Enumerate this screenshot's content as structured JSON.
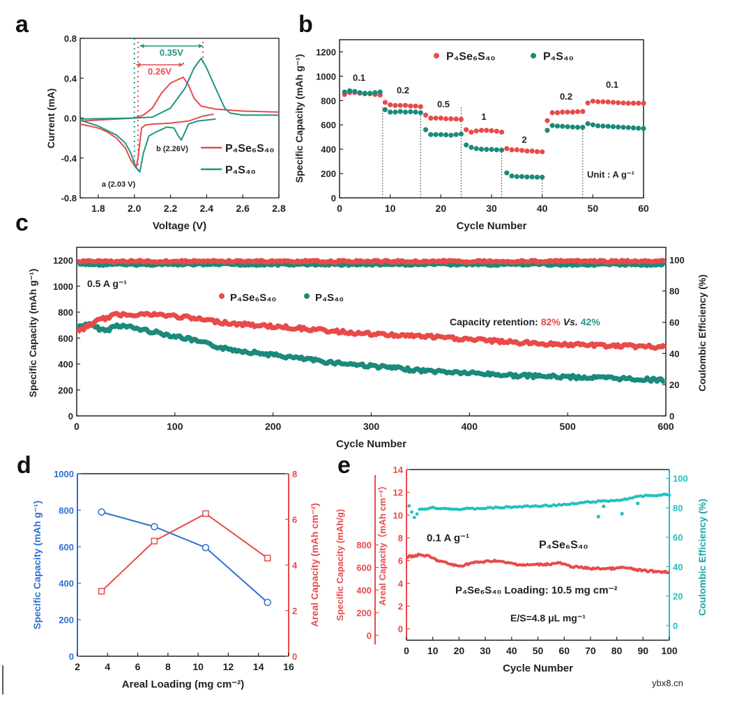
{
  "figure": {
    "panel_labels": [
      "a",
      "b",
      "c",
      "d",
      "e"
    ],
    "watermark": "ybx8.cn"
  },
  "chart_data": [
    {
      "panel": "a",
      "type": "line",
      "xlabel": "Voltage (V)",
      "ylabel": "Current (mA)",
      "xlim": [
        1.7,
        2.8
      ],
      "ylim": [
        -0.8,
        0.8
      ],
      "xticks": [
        1.8,
        2.0,
        2.2,
        2.4,
        2.6,
        2.8
      ],
      "xtick_labels": [
        "1.8",
        "2.0",
        "2.2",
        "2.4",
        "2.6",
        "2.8"
      ],
      "yticks": [
        -0.8,
        -0.4,
        0,
        0.4,
        0.8
      ],
      "ytick_labels": [
        "-0.8",
        "-0.4",
        "0.0",
        "0.4",
        "0.8"
      ],
      "legend_position": "bottom-right",
      "series": [
        {
          "name": "P₄Se₆S₄₀",
          "color": "#e84a4a",
          "segments": [
            [
              [
                2.44,
                0.04
              ],
              [
                2.38,
                0.02
              ],
              [
                2.3,
                -0.03
              ],
              [
                2.25,
                -0.04
              ],
              [
                2.2,
                -0.05
              ],
              [
                2.1,
                -0.06
              ],
              [
                2.06,
                -0.07
              ],
              [
                2.04,
                -0.1
              ],
              [
                2.02,
                -0.4
              ],
              [
                2.01,
                -0.5
              ],
              [
                1.98,
                -0.42
              ],
              [
                1.95,
                -0.3
              ],
              [
                1.9,
                -0.2
              ],
              [
                1.85,
                -0.14
              ],
              [
                1.8,
                -0.1
              ],
              [
                1.7,
                -0.06
              ]
            ],
            [
              [
                1.7,
                -0.03
              ],
              [
                1.9,
                -0.01
              ],
              [
                2.0,
                0.0
              ],
              [
                2.05,
                0.03
              ],
              [
                2.1,
                0.1
              ],
              [
                2.15,
                0.25
              ],
              [
                2.2,
                0.35
              ],
              [
                2.27,
                0.41
              ],
              [
                2.3,
                0.33
              ],
              [
                2.33,
                0.2
              ],
              [
                2.37,
                0.12
              ],
              [
                2.45,
                0.09
              ],
              [
                2.6,
                0.07
              ],
              [
                2.8,
                0.06
              ]
            ]
          ]
        },
        {
          "name": "P₄S₄₀",
          "color": "#1e9484",
          "segments": [
            [
              [
                2.45,
                -0.01
              ],
              [
                2.35,
                -0.03
              ],
              [
                2.3,
                -0.06
              ],
              [
                2.27,
                -0.18
              ],
              [
                2.26,
                -0.22
              ],
              [
                2.24,
                -0.17
              ],
              [
                2.22,
                -0.1
              ],
              [
                2.18,
                -0.09
              ],
              [
                2.12,
                -0.14
              ],
              [
                2.08,
                -0.18
              ],
              [
                2.05,
                -0.35
              ],
              [
                2.03,
                -0.54
              ],
              [
                2.01,
                -0.5
              ],
              [
                1.98,
                -0.35
              ],
              [
                1.95,
                -0.25
              ],
              [
                1.9,
                -0.17
              ],
              [
                1.8,
                -0.08
              ],
              [
                1.7,
                -0.02
              ]
            ],
            [
              [
                1.7,
                -0.01
              ],
              [
                2.0,
                0.0
              ],
              [
                2.1,
                0.01
              ],
              [
                2.2,
                0.1
              ],
              [
                2.28,
                0.3
              ],
              [
                2.33,
                0.5
              ],
              [
                2.37,
                0.6
              ],
              [
                2.4,
                0.5
              ],
              [
                2.45,
                0.3
              ],
              [
                2.5,
                0.1
              ],
              [
                2.53,
                0.05
              ],
              [
                2.6,
                0.03
              ],
              [
                2.8,
                0.03
              ]
            ]
          ]
        }
      ],
      "annotations": [
        {
          "text": "0.35V",
          "color": "#1e9484",
          "from_x": 2.03,
          "to_x": 2.38
        },
        {
          "text": "0.26V",
          "color": "#e84a4a",
          "from_x": 2.01,
          "to_x": 2.27
        },
        {
          "text": "a (2.03 V)"
        },
        {
          "text": "b (2.26V)"
        }
      ]
    },
    {
      "panel": "b",
      "type": "scatter",
      "xlabel": "Cycle Number",
      "ylabel": "Specific Capacity (mAh g⁻¹)",
      "xlim": [
        0,
        60
      ],
      "ylim": [
        0,
        1300
      ],
      "xticks": [
        0,
        10,
        20,
        30,
        40,
        50,
        60
      ],
      "xtick_labels": [
        "0",
        "10",
        "20",
        "30",
        "40",
        "50",
        "60"
      ],
      "yticks": [
        0,
        200,
        400,
        600,
        800,
        1000,
        1200
      ],
      "ytick_labels": [
        "0",
        "200",
        "400",
        "600",
        "800",
        "1000",
        "1200"
      ],
      "legend_position": "top",
      "x_start": 1,
      "series": [
        {
          "name": "P₄Se₆S₄₀",
          "color": "#e84a4a",
          "values": [
            850,
            865,
            865,
            860,
            855,
            855,
            850,
            845,
            785,
            765,
            760,
            760,
            760,
            755,
            755,
            750,
            680,
            655,
            655,
            655,
            650,
            650,
            648,
            645,
            560,
            540,
            550,
            555,
            555,
            552,
            548,
            540,
            405,
            395,
            395,
            390,
            385,
            385,
            380,
            378,
            635,
            700,
            700,
            705,
            705,
            705,
            708,
            710,
            780,
            795,
            790,
            790,
            788,
            785,
            782,
            780,
            778,
            778,
            778,
            778
          ]
        },
        {
          "name": "P₄S₄₀",
          "color": "#1a8a7a",
          "values": [
            870,
            880,
            875,
            865,
            860,
            860,
            865,
            870,
            725,
            705,
            705,
            710,
            705,
            708,
            705,
            700,
            560,
            520,
            520,
            520,
            518,
            515,
            520,
            525,
            435,
            415,
            405,
            400,
            398,
            398,
            395,
            393,
            205,
            180,
            175,
            175,
            172,
            172,
            170,
            170,
            555,
            595,
            590,
            588,
            585,
            582,
            580,
            580,
            610,
            600,
            592,
            590,
            588,
            585,
            582,
            580,
            578,
            575,
            572,
            570
          ]
        }
      ],
      "rate_boundaries": [
        8.5,
        16,
        24,
        32,
        40,
        48
      ],
      "rate_labels": [
        "0.1",
        "0.2",
        "0.5",
        "1",
        "2",
        "0.2",
        "0.1"
      ],
      "unit_note": "Unit : A g⁻¹"
    },
    {
      "panel": "c",
      "type": "line",
      "xlabel": "Cycle Number",
      "ylabel": "Specific Capacity (mAh g⁻¹)",
      "ylabel_right": "Coulombic Efficiency (%)",
      "xlim": [
        0,
        600
      ],
      "ylim": [
        0,
        1300
      ],
      "ylim_right": [
        0,
        108
      ],
      "xticks": [
        0,
        100,
        200,
        300,
        400,
        500,
        600
      ],
      "xtick_labels": [
        "0",
        "100",
        "200",
        "300",
        "400",
        "500",
        "600"
      ],
      "yticks": [
        0,
        200,
        400,
        600,
        800,
        1000,
        1200
      ],
      "ytick_labels": [
        "0",
        "200",
        "400",
        "600",
        "800",
        "1000",
        "1200"
      ],
      "yticks_right": [
        0,
        20,
        40,
        60,
        80,
        100
      ],
      "ytick_labels_right": [
        "0",
        "20",
        "40",
        "60",
        "80",
        "100"
      ],
      "legend_position": "top-center",
      "current_density": "0.5 A g⁻¹",
      "series": [
        {
          "name": "P₄Se₆S₄₀",
          "color": "#e84a4a",
          "capacity": [
            [
              0,
              640
            ],
            [
              20,
              730
            ],
            [
              40,
              780
            ],
            [
              60,
              785
            ],
            [
              80,
              780
            ],
            [
              100,
              770
            ],
            [
              120,
              750
            ],
            [
              140,
              730
            ],
            [
              160,
              710
            ],
            [
              180,
              700
            ],
            [
              200,
              690
            ],
            [
              220,
              680
            ],
            [
              250,
              660
            ],
            [
              300,
              630
            ],
            [
              350,
              615
            ],
            [
              400,
              590
            ],
            [
              450,
              565
            ],
            [
              500,
              550
            ],
            [
              550,
              540
            ],
            [
              600,
              530
            ]
          ],
          "coulombic_efficiency": [
            [
              0,
              99
            ],
            [
              600,
              99
            ]
          ]
        },
        {
          "name": "P₄S₄₀",
          "color": "#1a8a7a",
          "capacity": [
            [
              0,
              680
            ],
            [
              10,
              710
            ],
            [
              20,
              680
            ],
            [
              30,
              655
            ],
            [
              40,
              700
            ],
            [
              50,
              690
            ],
            [
              70,
              660
            ],
            [
              90,
              630
            ],
            [
              110,
              600
            ],
            [
              130,
              560
            ],
            [
              150,
              520
            ],
            [
              170,
              500
            ],
            [
              200,
              470
            ],
            [
              220,
              450
            ],
            [
              250,
              420
            ],
            [
              300,
              385
            ],
            [
              350,
              350
            ],
            [
              400,
              330
            ],
            [
              450,
              310
            ],
            [
              500,
              300
            ],
            [
              550,
              290
            ],
            [
              600,
              275
            ]
          ],
          "coulombic_efficiency": [
            [
              0,
              97
            ],
            [
              600,
              97
            ]
          ]
        }
      ],
      "retention": {
        "label": "Capacity retention: ",
        "value_1": "82%",
        "vs": "Vs.",
        "value_2": "42%"
      }
    },
    {
      "panel": "d",
      "type": "line",
      "xlabel": "Areal Loading (mg cm⁻²)",
      "ylabel": "Specific Capacity (mAh g⁻¹)",
      "ylabel_right": "Areal Capacity (mAh cm⁻²)",
      "xlim": [
        2,
        16
      ],
      "ylim": [
        0,
        1000
      ],
      "ylim_right": [
        0,
        8
      ],
      "xticks": [
        2,
        4,
        6,
        8,
        10,
        12,
        14,
        16
      ],
      "xtick_labels": [
        "2",
        "4",
        "6",
        "8",
        "10",
        "12",
        "14",
        "16"
      ],
      "yticks": [
        0,
        200,
        400,
        600,
        800,
        1000
      ],
      "ytick_labels": [
        "0",
        "200",
        "400",
        "600",
        "800",
        "1000"
      ],
      "yticks_right": [
        0,
        2,
        4,
        6,
        8
      ],
      "ytick_labels_right": [
        "0",
        "2",
        "4",
        "6",
        "8"
      ],
      "x": [
        3.6,
        7.1,
        10.5,
        14.6
      ],
      "series": [
        {
          "axis": "left",
          "color": "#2f6fd0",
          "values": [
            790,
            710,
            595,
            295
          ]
        },
        {
          "axis": "right",
          "color": "#e84a4a",
          "values": [
            2.85,
            5.05,
            6.25,
            4.3
          ]
        }
      ]
    },
    {
      "panel": "e",
      "type": "line",
      "xlabel": "Cycle Number",
      "ylabel_outer": "Specific Capacity (mAh/g)",
      "ylabel": "Areal Capacity（mAh cm⁻²）",
      "ylabel_right": "Coulombic Efficiency (%)",
      "xlim": [
        0,
        100
      ],
      "ylim": [
        -1,
        14
      ],
      "ylim_right": [
        -10,
        106
      ],
      "ylim_outer": [
        0,
        800
      ],
      "xticks": [
        0,
        10,
        20,
        30,
        40,
        50,
        60,
        70,
        80,
        90,
        100
      ],
      "xtick_labels": [
        "0",
        "10",
        "20",
        "30",
        "40",
        "50",
        "60",
        "70",
        "80",
        "90",
        "100"
      ],
      "yticks": [
        0,
        2,
        4,
        6,
        8,
        10,
        12,
        14
      ],
      "ytick_labels": [
        "0",
        "2",
        "4",
        "6",
        "8",
        "10",
        "12",
        "14"
      ],
      "yticks_right": [
        0,
        20,
        40,
        60,
        80,
        100
      ],
      "ytick_labels_right": [
        "0",
        "20",
        "40",
        "60",
        "80",
        "100"
      ],
      "yticks_outer": [
        0,
        200,
        400,
        600,
        800
      ],
      "ytick_labels_outer": [
        "0",
        "200",
        "400",
        "600",
        "800"
      ],
      "areal_capacity": {
        "color": "#e84a4a",
        "points": [
          [
            0,
            6.3
          ],
          [
            5,
            6.5
          ],
          [
            8,
            6.4
          ],
          [
            12,
            6.0
          ],
          [
            18,
            5.6
          ],
          [
            20,
            5.5
          ],
          [
            25,
            5.8
          ],
          [
            30,
            5.9
          ],
          [
            34,
            6.0
          ],
          [
            38,
            5.8
          ],
          [
            45,
            5.6
          ],
          [
            55,
            5.7
          ],
          [
            58,
            5.8
          ],
          [
            62,
            5.5
          ],
          [
            70,
            5.3
          ],
          [
            80,
            5.3
          ],
          [
            82,
            5.4
          ],
          [
            90,
            5.1
          ],
          [
            100,
            5.0
          ]
        ]
      },
      "coulombic_efficiency": {
        "color": "#22c0c0",
        "points": [
          [
            1,
            81
          ],
          [
            2,
            77
          ],
          [
            3,
            73
          ],
          [
            4,
            76
          ],
          [
            5,
            79
          ],
          [
            10,
            80
          ],
          [
            20,
            79
          ],
          [
            40,
            80.5
          ],
          [
            60,
            82
          ],
          [
            70,
            84
          ],
          [
            80,
            85
          ],
          [
            90,
            88
          ],
          [
            100,
            89
          ]
        ],
        "outliers": [
          [
            73,
            74
          ],
          [
            75,
            81
          ],
          [
            82,
            76
          ],
          [
            88,
            83
          ]
        ]
      },
      "current_density": "0.1 A g⁻¹",
      "sample_label": "P₄Se₆S₄₀",
      "loading_note": "P₄Se₆S₄₀  Loading: 10.5 mg cm⁻²",
      "electrolyte_note": "E/S=4.8 μL mg⁻¹"
    }
  ]
}
